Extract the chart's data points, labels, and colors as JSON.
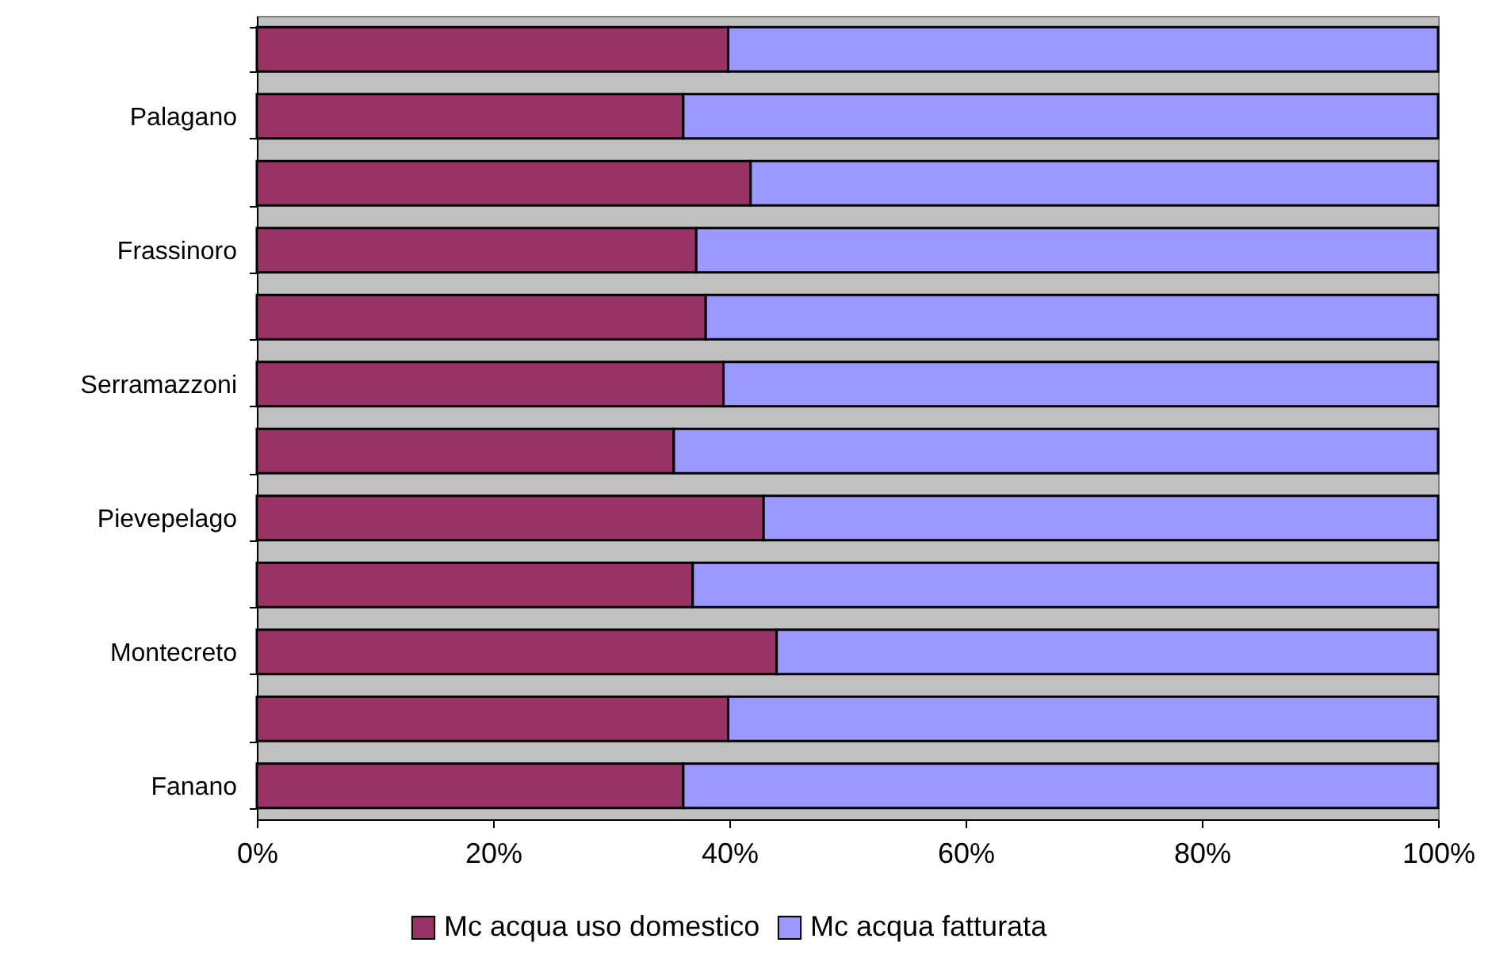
{
  "chart_data": {
    "type": "bar",
    "orientation": "horizontal",
    "stacked": true,
    "categories": [
      null,
      "Palagano",
      null,
      "Frassinoro",
      null,
      "Serramazzoni",
      null,
      "Pievepelago",
      null,
      "Montecreto",
      null,
      "Fanano"
    ],
    "series": [
      {
        "name": "Mc acqua uso domestico",
        "color": "#993366",
        "values": [
          39.9,
          36.1,
          41.8,
          37.2,
          38.0,
          39.5,
          35.3,
          42.9,
          36.9,
          44.0,
          39.9,
          36.1
        ]
      },
      {
        "name": "Mc acqua fatturata",
        "color": "#9999ff",
        "values": [
          60.1,
          63.9,
          58.2,
          62.8,
          62.0,
          60.5,
          64.7,
          57.1,
          63.1,
          56.0,
          60.1,
          63.9
        ]
      }
    ],
    "xlim": [
      0,
      100
    ],
    "xticks": [
      {
        "value": 0,
        "label": "0%"
      },
      {
        "value": 20,
        "label": "20%"
      },
      {
        "value": 40,
        "label": "40%"
      },
      {
        "value": 60,
        "label": "60%"
      },
      {
        "value": 80,
        "label": "80%"
      },
      {
        "value": 100,
        "label": "100%"
      }
    ],
    "grid": false,
    "legend": "bottom"
  }
}
